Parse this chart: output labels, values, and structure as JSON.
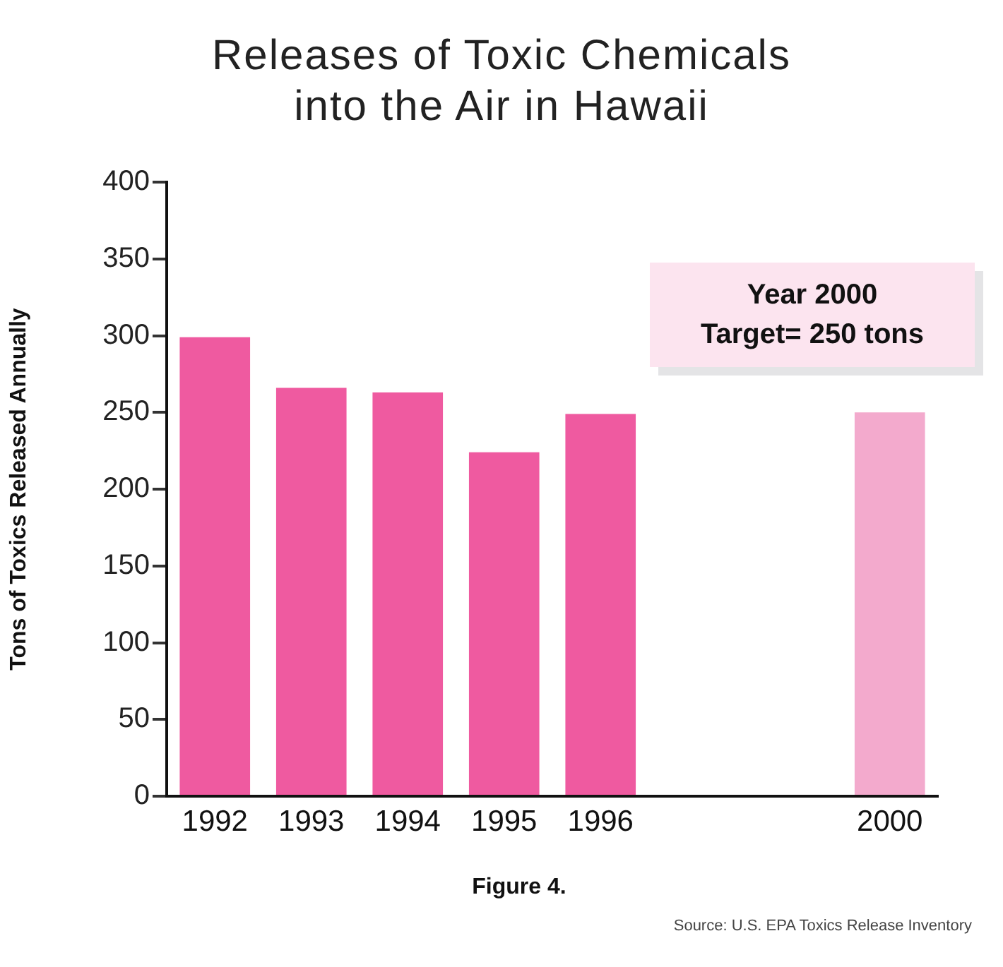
{
  "chart_data": {
    "type": "bar",
    "title": "Releases of Toxic Chemicals\ninto the Air in Hawaii",
    "ylabel": "Tons of Toxics Released Annually",
    "categories": [
      "1992",
      "1993",
      "1994",
      "1995",
      "1996",
      null,
      null,
      "2000"
    ],
    "values": [
      299,
      266,
      263,
      224,
      249,
      null,
      null,
      250
    ],
    "colors": [
      "#ef5aa0",
      "#ef5aa0",
      "#ef5aa0",
      "#ef5aa0",
      "#ef5aa0",
      "#ef5aa0",
      "#ef5aa0",
      "#f3aacd"
    ],
    "ylim": [
      0,
      400
    ],
    "yticks": [
      0,
      50,
      100,
      150,
      200,
      250,
      300,
      350,
      400
    ],
    "grid": false,
    "legend": false,
    "annotations": [
      "Year 2000\nTarget= 250 tons",
      "Figure 4.",
      "Source: U.S. EPA Toxics Release Inventory"
    ]
  }
}
